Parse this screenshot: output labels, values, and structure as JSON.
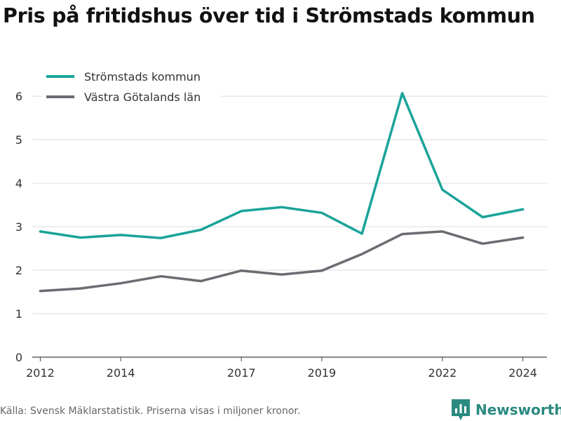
{
  "title": "Pris på fritidshus över tid i Strömstads kommun",
  "footer": {
    "source_note": "Källa: Svensk Mäklarstatistik. Priserna visas i miljoner kronor.",
    "brand": "Newsworthy",
    "brand_logo_icon": "bar-chart-icon"
  },
  "colors": {
    "stromstad": "#1aa39a",
    "vastra": "#6b6b72",
    "grid": "#dddddd",
    "brand": "#2a8a80"
  },
  "chart_data": {
    "type": "line",
    "title": "Pris på fritidshus över tid i Strömstads kommun",
    "xlabel": "",
    "ylabel": "",
    "x": [
      2012,
      2013,
      2014,
      2015,
      2016,
      2017,
      2018,
      2019,
      2020,
      2021,
      2022,
      2023,
      2024
    ],
    "xticks": [
      2012,
      2014,
      2017,
      2019,
      2022,
      2024
    ],
    "xlim": [
      2011.8,
      2024.6
    ],
    "ylim": [
      0,
      6.6
    ],
    "yticks": [
      0,
      1,
      2,
      3,
      4,
      5,
      6
    ],
    "grid": true,
    "legend_position": "top-left",
    "series": [
      {
        "name": "Strömstads kommun",
        "color": "#1aa39a",
        "values": [
          2.89,
          2.75,
          2.81,
          2.74,
          2.93,
          3.36,
          3.45,
          3.32,
          2.84,
          6.07,
          3.85,
          3.22,
          3.4
        ]
      },
      {
        "name": "Västra Götalands län",
        "color": "#6b6b72",
        "values": [
          1.52,
          1.58,
          1.7,
          1.86,
          1.75,
          1.99,
          1.9,
          1.99,
          2.37,
          2.83,
          2.89,
          2.61,
          2.75
        ]
      }
    ]
  }
}
